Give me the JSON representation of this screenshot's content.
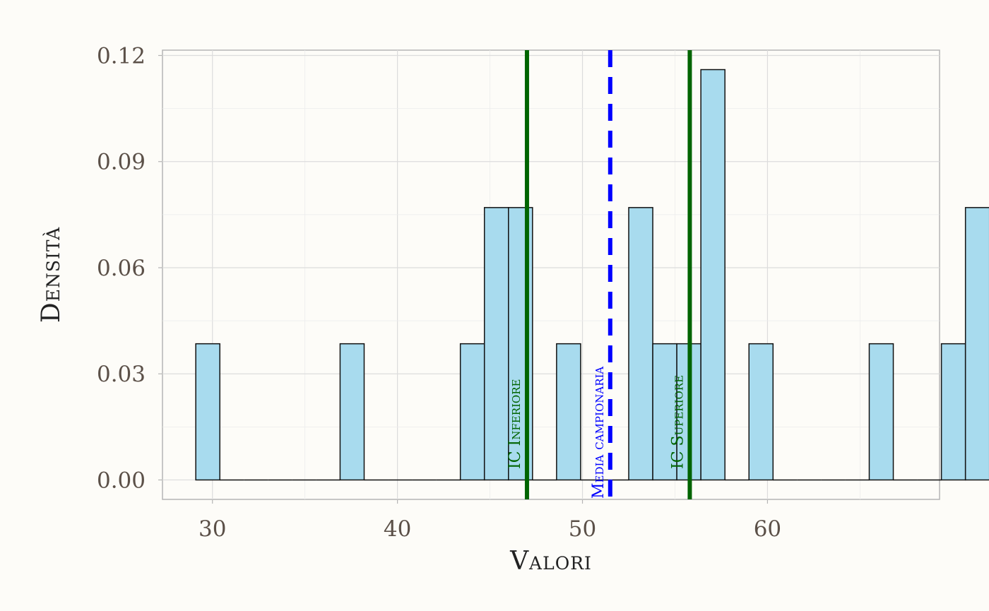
{
  "chart_data": {
    "type": "bar",
    "subtype": "histogram",
    "xlabel": "Valori",
    "ylabel": "Densità",
    "xlim": [
      27.3,
      69.3
    ],
    "ylim": [
      -0.0055,
      0.1215
    ],
    "x_ticks": [
      30,
      40,
      50,
      60
    ],
    "x_tick_labels": [
      "30",
      "40",
      "50",
      "60"
    ],
    "y_ticks": [
      0,
      0.03,
      0.06,
      0.09,
      0.12
    ],
    "y_tick_labels": [
      "0.00",
      "0.03",
      "0.06",
      "0.09",
      "0.12"
    ],
    "grid": true,
    "bin_width": 1.3,
    "bin_start": 29.1,
    "values": [
      0.0385,
      0,
      0,
      0,
      0,
      0,
      0.0385,
      0,
      0,
      0,
      0,
      0.0385,
      0.077,
      0.077,
      0,
      0.0385,
      0,
      0,
      0.077,
      0.0385,
      0.0385,
      0.116,
      0,
      0.0385,
      0,
      0,
      0,
      0,
      0.0385,
      0,
      0,
      0.0385,
      0.077
    ],
    "bar_fill": "#a8dbee",
    "bar_stroke": "#111111",
    "vlines": [
      {
        "label": "IC Inferiore",
        "x": 47.0,
        "color": "#006400",
        "style": "solid"
      },
      {
        "label": "Media campionaria",
        "x": 51.5,
        "color": "#0000ff",
        "style": "dashed"
      },
      {
        "label": "IC Superiore",
        "x": 55.8,
        "color": "#006400",
        "style": "solid"
      }
    ]
  }
}
